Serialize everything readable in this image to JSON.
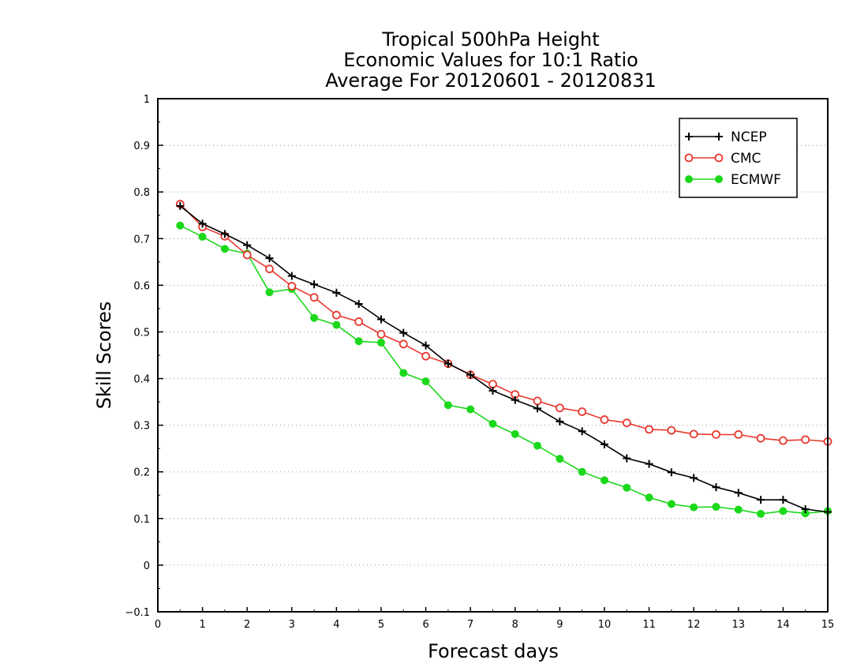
{
  "chart_data": {
    "type": "line",
    "title": [
      "Tropical 500hPa Height",
      "Economic Values for 10:1 Ratio",
      "Average For 20120601 - 20120831"
    ],
    "xlabel": "Forecast days",
    "ylabel": "Skill Scores",
    "xlim": [
      0,
      15
    ],
    "ylim": [
      -0.1,
      1
    ],
    "xticks": [
      "0",
      "1",
      "2",
      "3",
      "4",
      "5",
      "6",
      "7",
      "8",
      "9",
      "10",
      "11",
      "12",
      "13",
      "14",
      "15"
    ],
    "yticks": [
      "−0.1",
      "0",
      "0.1",
      "0.2",
      "0.3",
      "0.4",
      "0.5",
      "0.6",
      "0.7",
      "0.8",
      "0.9",
      "1"
    ],
    "ytick_values": [
      -0.1,
      0,
      0.1,
      0.2,
      0.3,
      0.4,
      0.5,
      0.6,
      0.7,
      0.8,
      0.9,
      1
    ],
    "grid": true,
    "legend_position": "top-right",
    "x": [
      0.5,
      1,
      1.5,
      2,
      2.5,
      3,
      3.5,
      4,
      4.5,
      5,
      5.5,
      6,
      6.5,
      7,
      7.5,
      8,
      8.5,
      9,
      9.5,
      10,
      10.5,
      11,
      11.5,
      12,
      12.5,
      13,
      13.5,
      14,
      14.5,
      15
    ],
    "series": [
      {
        "name": "NCEP",
        "color": "#000000",
        "marker": "plus",
        "values": [
          0.77,
          0.732,
          0.71,
          0.686,
          0.658,
          0.62,
          0.602,
          0.584,
          0.56,
          0.527,
          0.498,
          0.471,
          0.432,
          0.408,
          0.374,
          0.354,
          0.336,
          0.308,
          0.287,
          0.259,
          0.229,
          0.217,
          0.199,
          0.187,
          0.167,
          0.155,
          0.14,
          0.14,
          0.12,
          0.114
        ]
      },
      {
        "name": "CMC",
        "color": "#e8382f",
        "marker": "open-circle",
        "values": [
          0.774,
          0.725,
          0.705,
          0.665,
          0.635,
          0.598,
          0.574,
          0.536,
          0.522,
          0.495,
          0.474,
          0.448,
          0.432,
          0.408,
          0.388,
          0.366,
          0.352,
          0.337,
          0.329,
          0.312,
          0.305,
          0.291,
          0.289,
          0.281,
          0.28,
          0.28,
          0.272,
          0.267,
          0.269,
          0.265
        ]
      },
      {
        "name": "ECMWF",
        "color": "#1bd81b",
        "marker": "filled-circle",
        "values": [
          0.728,
          0.704,
          0.678,
          0.668,
          0.585,
          0.592,
          0.53,
          0.515,
          0.48,
          0.477,
          0.412,
          0.394,
          0.343,
          0.334,
          0.303,
          0.281,
          0.256,
          0.228,
          0.2,
          0.182,
          0.166,
          0.145,
          0.131,
          0.124,
          0.125,
          0.119,
          0.11,
          0.116,
          0.111,
          0.116
        ]
      }
    ]
  }
}
